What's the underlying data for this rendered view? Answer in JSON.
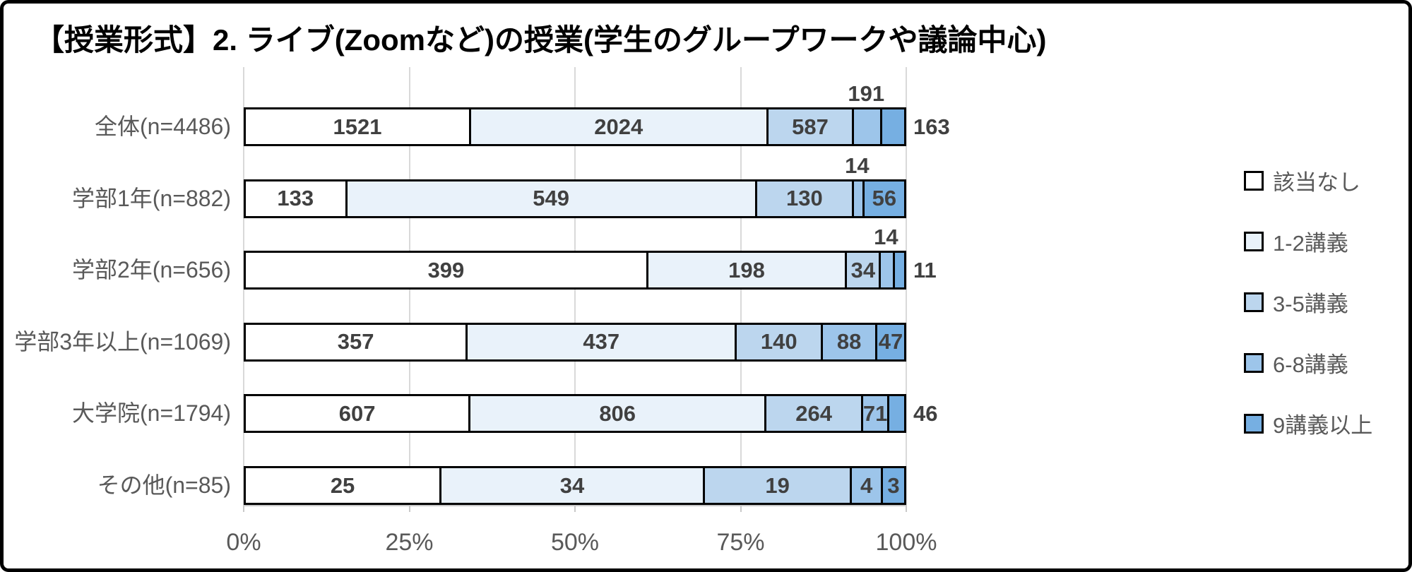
{
  "title": "【授業形式】2. ライブ(Zoomなど)の授業(学生のグループワークや議論中心)",
  "chart_data": {
    "type": "bar",
    "subtype": "horizontal-stacked-100pct",
    "categories": [
      "全体(n=4486)",
      "学部1年(n=882)",
      "学部2年(n=656)",
      "学部3年以上(n=1069)",
      "大学院(n=1794)",
      "その他(n=85)"
    ],
    "series": [
      {
        "name": "該当なし",
        "color": "#FFFFFF",
        "values": [
          1521,
          133,
          399,
          357,
          607,
          25
        ]
      },
      {
        "name": "1-2講義",
        "color": "#E9F2FA",
        "values": [
          2024,
          549,
          198,
          437,
          806,
          34
        ]
      },
      {
        "name": "3-5講義",
        "color": "#BCD6EE",
        "values": [
          587,
          130,
          34,
          140,
          264,
          19
        ]
      },
      {
        "name": "6-8講義",
        "color": "#9DC5EA",
        "values": [
          191,
          14,
          14,
          88,
          71,
          4
        ]
      },
      {
        "name": "9講義以上",
        "color": "#76AFE2",
        "values": [
          163,
          56,
          11,
          47,
          46,
          3
        ]
      }
    ],
    "x_axis": {
      "tick_labels": [
        "0%",
        "25%",
        "50%",
        "75%",
        "100%"
      ],
      "range_percent": [
        0,
        100
      ],
      "grid": true
    },
    "legend": {
      "position": "right",
      "entries": [
        "該当なし",
        "1-2講義",
        "3-5講義",
        "6-8講義",
        "9講義以上"
      ]
    },
    "data_labels": true
  },
  "style": {
    "segment_border": "#000000",
    "frame_border": "#000000",
    "grid_color": "#D9D9D9",
    "axis_color": "#C9C9C9",
    "data_label_color": "#404040",
    "category_label_color": "#595959",
    "title_color": "#000000"
  }
}
